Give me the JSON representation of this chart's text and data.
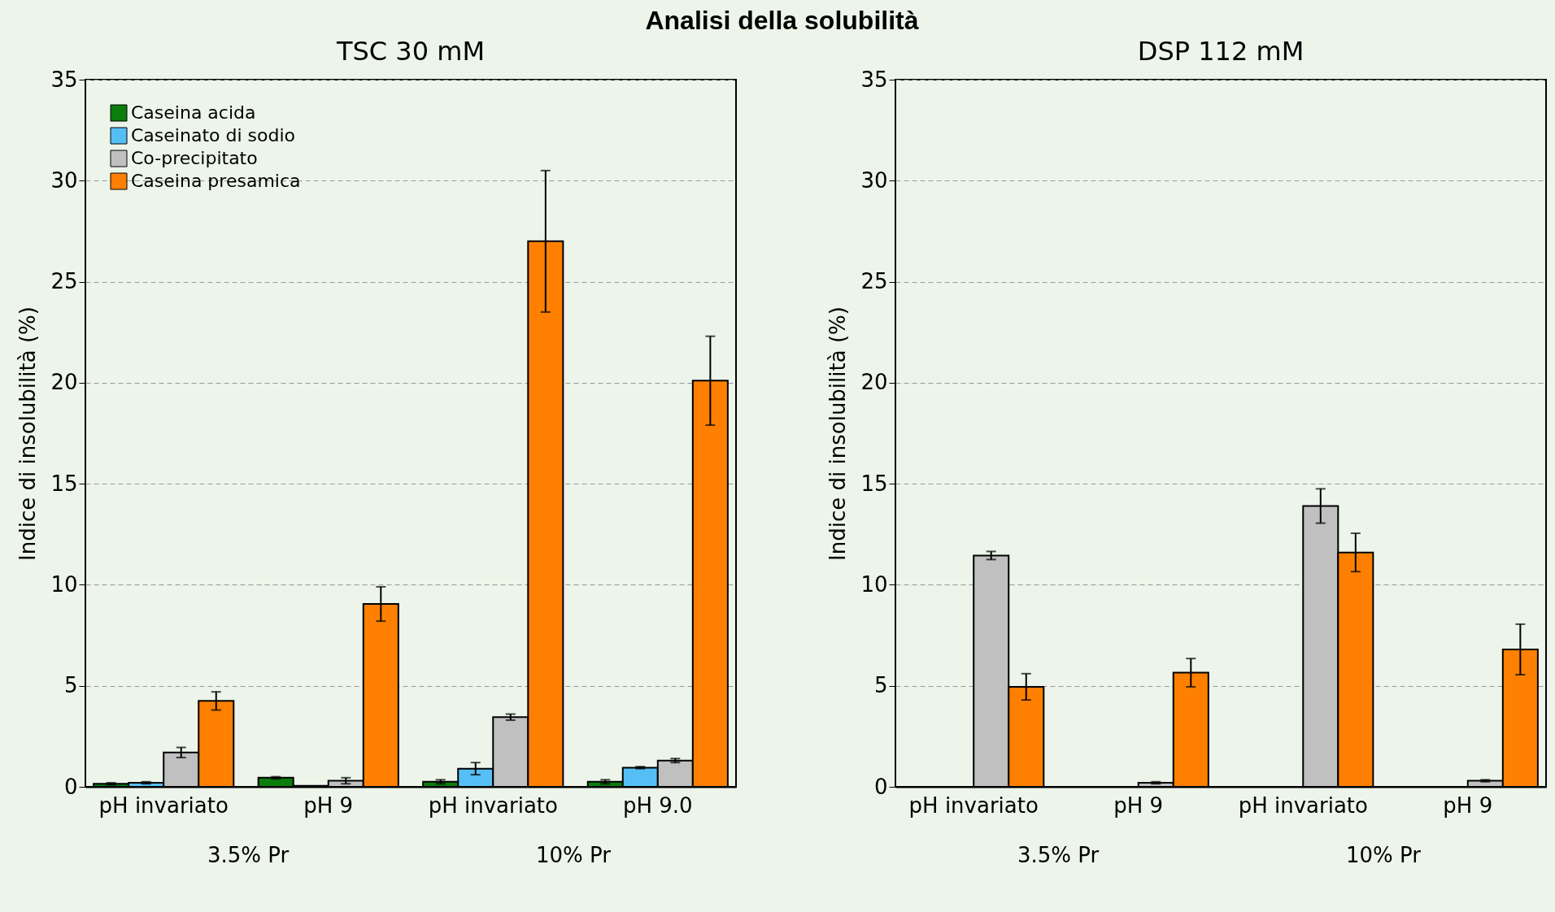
{
  "chart_data": [
    {
      "type": "bar",
      "title": "Analisi della solubilità",
      "subtitle": "TSC 30 mM",
      "ylabel": "Indice di insolubilità (%)",
      "categories": [
        "pH invariato",
        "pH 9",
        "pH invariato",
        "pH 9.0"
      ],
      "annotations": [
        "3.5% Pr",
        "10% Pr"
      ],
      "ylim": [
        0,
        35
      ],
      "yticks": [
        0,
        5,
        10,
        15,
        20,
        25,
        30,
        35
      ],
      "grid": "y",
      "legend": "top left",
      "series": [
        {
          "name": "Caseina acida",
          "color": "#0a7d0a",
          "values": [
            0.15,
            0.45,
            0.25,
            0.25
          ],
          "errors": [
            0.05,
            0.05,
            0.1,
            0.1
          ]
        },
        {
          "name": "Caseinato di sodio",
          "color": "#55bff5",
          "values": [
            0.2,
            0.05,
            0.9,
            0.95
          ],
          "errors": [
            0.05,
            null,
            0.3,
            0.05
          ]
        },
        {
          "name": "Co-precipitato",
          "color": "#c0c0c0",
          "values": [
            1.7,
            0.3,
            3.45,
            1.3
          ],
          "errors": [
            0.25,
            0.15,
            0.15,
            0.1
          ]
        },
        {
          "name": "Caseina presamica",
          "color": "#ff8000",
          "values": [
            4.25,
            9.05,
            27.0,
            20.1
          ],
          "errors": [
            0.45,
            0.85,
            3.5,
            2.2
          ]
        }
      ]
    },
    {
      "type": "bar",
      "title": "DSP 112 mM",
      "ylabel": "Indice di insolubilità (%)",
      "categories": [
        "pH invariato",
        "pH 9",
        "pH invariato",
        "pH 9"
      ],
      "annotations": [
        "3.5% Pr",
        "10% Pr"
      ],
      "ylim": [
        0,
        35
      ],
      "yticks": [
        0,
        5,
        10,
        15,
        20,
        25,
        30,
        35
      ],
      "grid": "y",
      "series": [
        {
          "color": "#0a7d0a",
          "values": [
            null,
            null,
            null,
            null
          ]
        },
        {
          "color": "#55bff5",
          "values": [
            null,
            null,
            null,
            null
          ]
        },
        {
          "color": "#c0c0c0",
          "values": [
            11.45,
            0.2,
            13.9,
            0.3
          ],
          "errors": [
            0.2,
            0.05,
            0.85,
            0.05
          ]
        },
        {
          "color": "#ff8000",
          "values": [
            4.95,
            5.65,
            11.6,
            6.8
          ],
          "errors": [
            0.65,
            0.7,
            0.95,
            1.25
          ]
        }
      ]
    }
  ]
}
